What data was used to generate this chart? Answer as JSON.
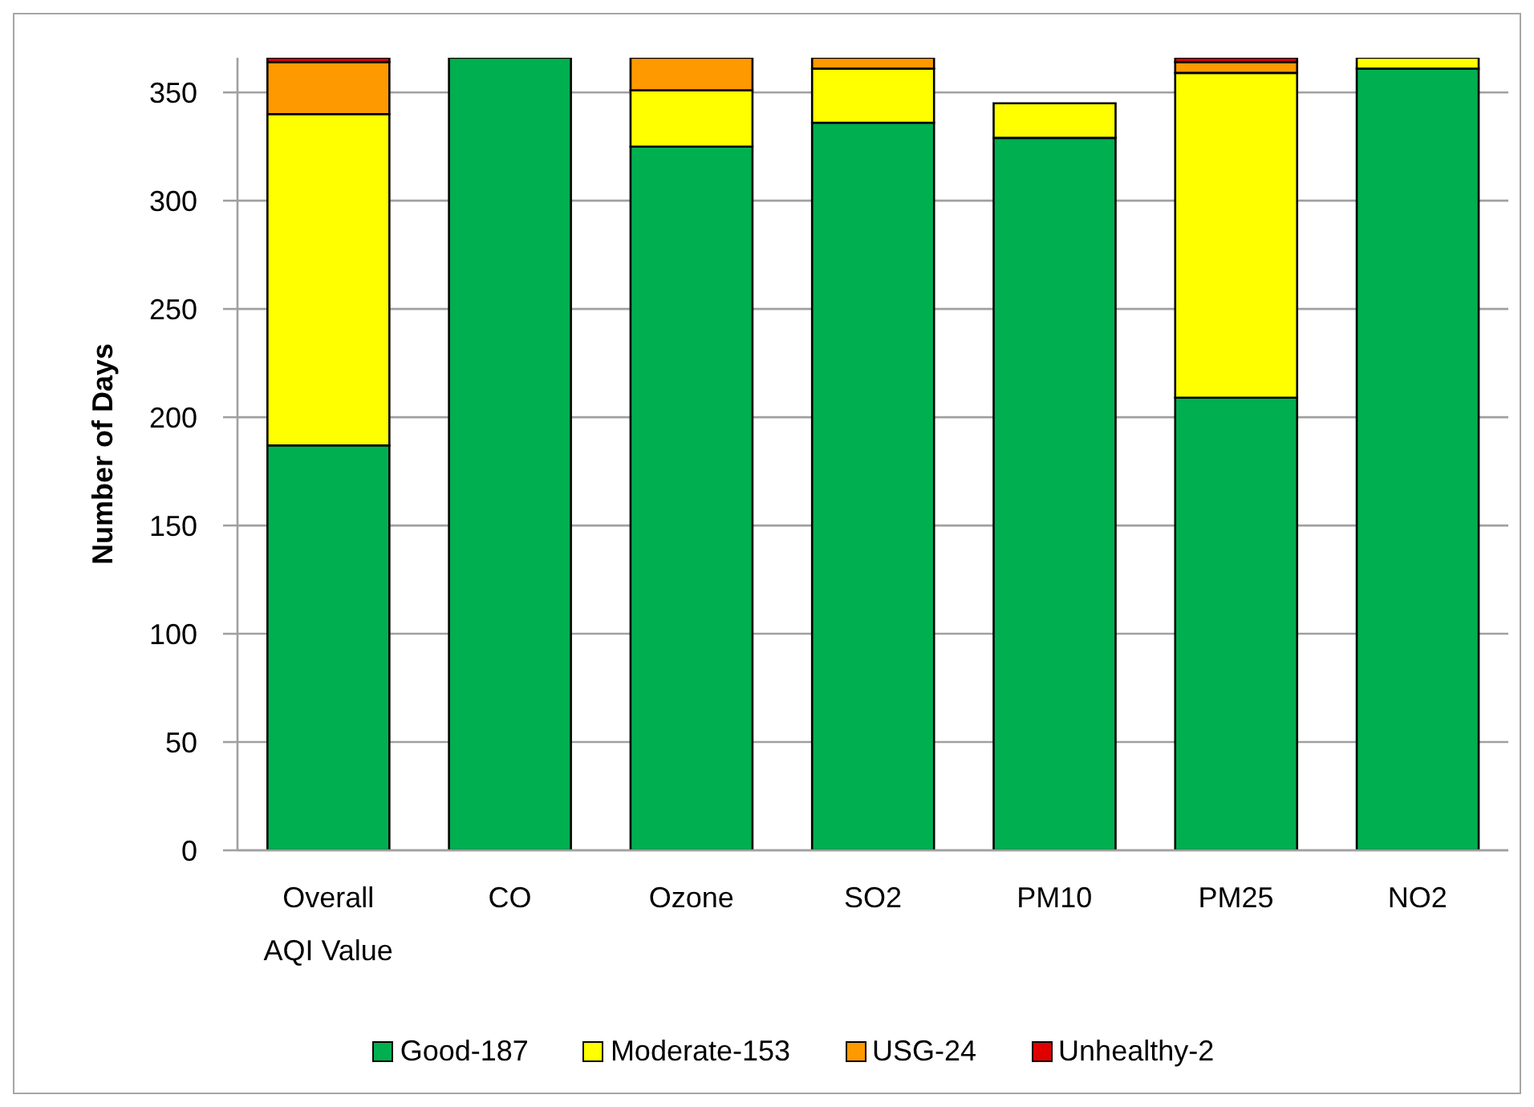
{
  "chart_data": {
    "type": "bar",
    "ylabel": "Number of Days",
    "categories": [
      "Overall AQI Value",
      "CO",
      "Ozone",
      "SO2",
      "PM10",
      "PM25",
      "NO2"
    ],
    "series": [
      {
        "name": "Good-187",
        "color": "#00b050",
        "values": [
          187,
          366,
          325,
          336,
          329,
          209,
          361
        ]
      },
      {
        "name": "Moderate-153",
        "color": "#ffff00",
        "values": [
          153,
          null,
          26,
          25,
          16,
          150,
          5
        ]
      },
      {
        "name": "USG-24",
        "color": "#ff9900",
        "values": [
          24,
          null,
          15,
          5,
          null,
          5,
          null
        ]
      },
      {
        "name": "Unhealthy-2",
        "color": "#e00000",
        "values": [
          2,
          null,
          null,
          null,
          null,
          2,
          null
        ]
      }
    ],
    "stacked": true,
    "ylim": [
      0,
      366
    ],
    "yticks": [
      0,
      50,
      100,
      150,
      200,
      250,
      300,
      350
    ],
    "grid": "y",
    "legend": "bottom"
  }
}
